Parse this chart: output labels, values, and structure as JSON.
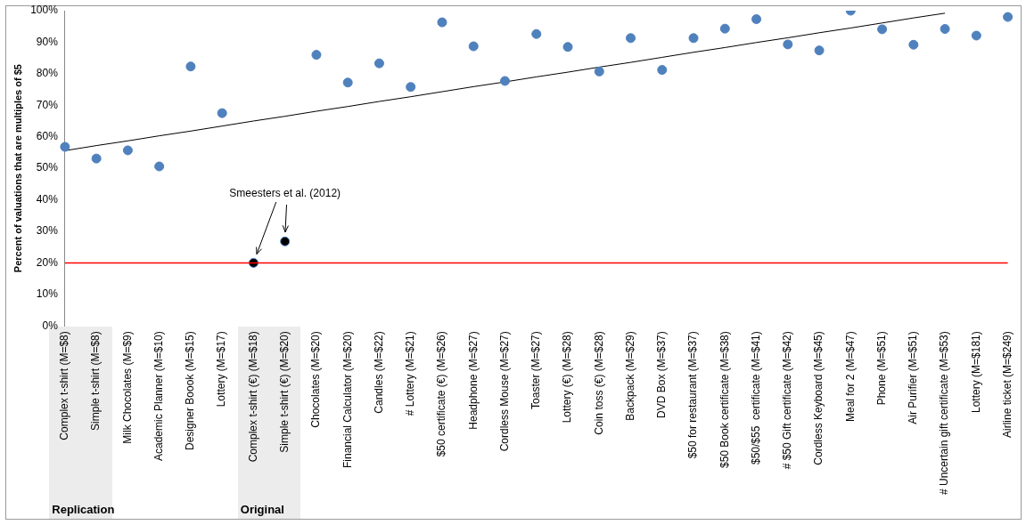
{
  "chart_data": {
    "type": "scatter",
    "ylabel": "Percent of valuations that are multiples of $5",
    "categories": [
      "Complex t-shirt (M=$8)",
      "Simple t-shirt (M=$8)",
      "Milk Chocolates (M=$9)",
      "Academic Planner (M=$10)",
      "Designer Boook (M=$15)",
      "Lottery (M=$17)",
      "Complex t-shirt (€) (M=$18)",
      "Simple t-shirt (€) (M=$20)",
      "Chocolates (M=$20)",
      "Financial Calculator (M=$20)",
      "Candles (M=$22)",
      "# Lottery (M=$21)",
      "$50 certificate (€) (M=$26)",
      "Headphone (M=$27)",
      "Cordless Mouse (M=$27)",
      "Toaster (M=$27)",
      "Lottery (€) (M=$28)",
      "Coin toss (€) (M=$28)",
      "Backpack (M=$29)",
      "DVD Box (M=$37)",
      "$50 for restaurant (M=$37)",
      "$50 Book certificate (M=$38)",
      "$50/$55  certificate (M=$41)",
      "# $50 Gift certificate (M=$42)",
      "Cordless Keyboard (M=$45)",
      "Meal for 2 (M=$47)",
      "Phone (M=$51)",
      "Air Purifier (M=$51)",
      "# Uncertain gift certificate (M=$53)",
      "Lottery (M=$181)",
      "Airline ticket (M=$249)"
    ],
    "series": [
      {
        "type": "line",
        "marker": "none",
        "color": "#000000",
        "values": [
          55.6,
          57.2,
          58.7,
          60.3,
          61.8,
          63.4,
          65.0,
          66.5,
          68.1,
          69.6,
          71.2,
          72.7,
          74.3,
          75.9,
          77.4,
          79.0,
          80.5,
          82.1,
          83.6,
          85.2,
          86.8,
          88.3,
          89.9,
          91.4,
          93.0,
          94.5,
          96.1,
          97.7,
          99.2,
          null,
          null
        ]
      },
      {
        "color": "#4f81bd",
        "values": [
          56.8,
          53.1,
          55.7,
          50.6,
          82.3,
          67.5,
          null,
          null,
          86.0,
          77.2,
          83.3,
          75.8,
          96.3,
          88.7,
          77.7,
          92.6,
          88.5,
          80.7,
          91.3,
          81.2,
          91.3,
          94.3,
          97.3,
          89.3,
          87.4,
          100,
          94.1,
          89.2,
          94.2,
          92.1,
          98.0
        ]
      },
      {
        "color": "#000000",
        "values": [
          null,
          null,
          null,
          null,
          null,
          null,
          20.0,
          26.8,
          null,
          null,
          null,
          null,
          null,
          null,
          null,
          null,
          null,
          null,
          null,
          null,
          null,
          null,
          null,
          null,
          null,
          null,
          null,
          null,
          null,
          null,
          null
        ]
      }
    ],
    "ylim": [
      0,
      100
    ],
    "yticks": [
      {
        "value": 0,
        "label": "0%"
      },
      {
        "value": 10,
        "label": "10%"
      },
      {
        "value": 20,
        "label": "20%"
      },
      {
        "value": 30,
        "label": "30%"
      },
      {
        "value": 40,
        "label": "40%"
      },
      {
        "value": 50,
        "label": "50%"
      },
      {
        "value": 60,
        "label": "60%"
      },
      {
        "value": 70,
        "label": "70%"
      },
      {
        "value": 80,
        "label": "80%"
      },
      {
        "value": 90,
        "label": "90%"
      },
      {
        "value": 100,
        "label": "100%"
      }
    ],
    "ref_lines": [
      {
        "axis": "y",
        "value": 20,
        "label": null,
        "color": "#ff0000"
      }
    ],
    "annotations": [
      "Smeesters et al. (2012)",
      "Replication",
      "Original"
    ],
    "marker": "circle",
    "grid": false,
    "legend": false
  }
}
